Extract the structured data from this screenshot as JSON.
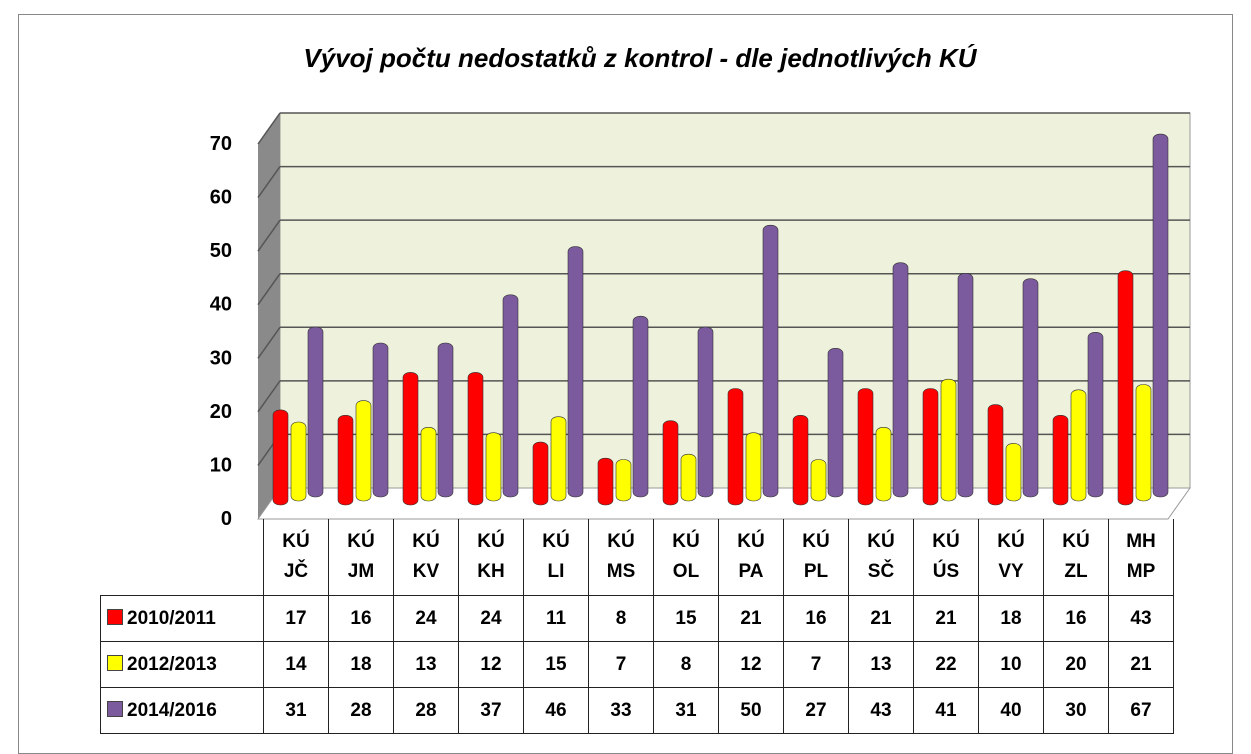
{
  "chart_data": {
    "type": "bar",
    "title": "Vývoj počtu nedostatků z kontrol - dle jednotlivých KÚ",
    "categories": [
      "KÚ JČ",
      "KÚ JM",
      "KÚ KV",
      "KÚ KH",
      "KÚ LI",
      "KÚ MS",
      "KÚ OL",
      "KÚ PA",
      "KÚ PL",
      "KÚ SČ",
      "KÚ ÚS",
      "KÚ VY",
      "KÚ ZL",
      "MH MP"
    ],
    "series": [
      {
        "name": "2010/2011",
        "color": "#ff0000",
        "values": [
          17,
          16,
          24,
          24,
          11,
          8,
          15,
          21,
          16,
          21,
          21,
          18,
          16,
          43
        ]
      },
      {
        "name": "2012/2013",
        "color": "#ffff00",
        "values": [
          14,
          18,
          13,
          12,
          15,
          7,
          8,
          12,
          7,
          13,
          22,
          10,
          20,
          21
        ]
      },
      {
        "name": "2014/2016",
        "color": "#7b5a9e",
        "values": [
          31,
          28,
          28,
          37,
          46,
          33,
          31,
          50,
          27,
          43,
          41,
          40,
          30,
          67
        ]
      }
    ],
    "ylim": [
      0,
      70
    ],
    "yticks": [
      0,
      10,
      20,
      30,
      40,
      50,
      60,
      70
    ],
    "grid": true
  }
}
